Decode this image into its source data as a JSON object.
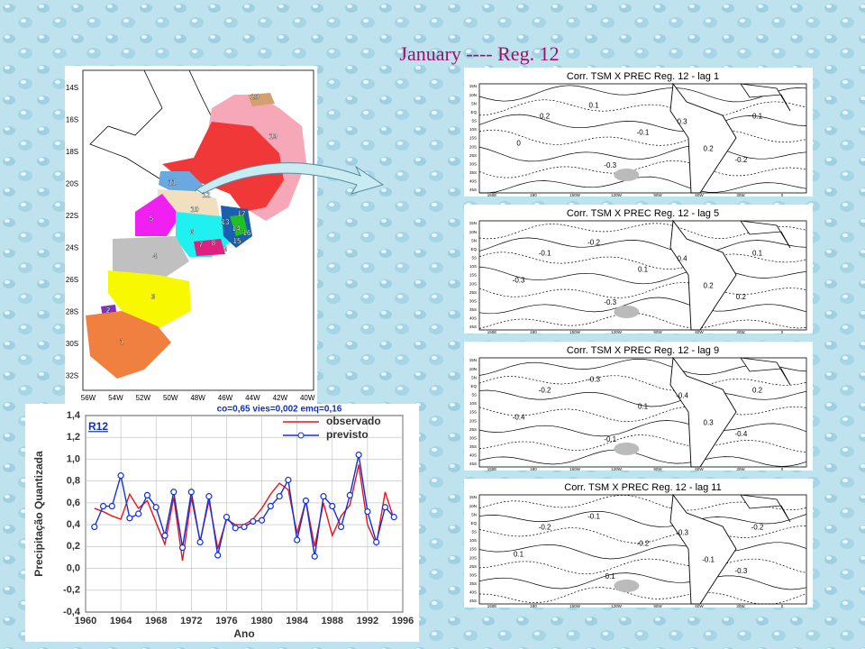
{
  "slide_title": "January ----  Reg. 12",
  "map": {
    "lat_labels": [
      "14S",
      "16S",
      "18S",
      "20S",
      "22S",
      "24S",
      "26S",
      "28S",
      "30S",
      "32S"
    ],
    "lon_labels": [
      "56W",
      "54W",
      "52W",
      "50W",
      "48W",
      "46W",
      "44W",
      "42W",
      "40W"
    ],
    "regions": [
      "1",
      "2",
      "3",
      "4",
      "5",
      "6",
      "7",
      "8",
      "9",
      "10",
      "11",
      "12",
      "13",
      "14",
      "15",
      "16",
      "17",
      "19",
      "20"
    ]
  },
  "chart_data": {
    "type": "line",
    "subtitle": "co=0,65 vies=0,002 emq=0,16",
    "annotation": "R12",
    "x_label": "Ano",
    "y_label": "Precipitação Quantizada",
    "x": [
      1961,
      1962,
      1963,
      1964,
      1965,
      1966,
      1967,
      1968,
      1969,
      1970,
      1971,
      1972,
      1973,
      1974,
      1975,
      1976,
      1977,
      1978,
      1979,
      1980,
      1981,
      1982,
      1983,
      1984,
      1985,
      1986,
      1987,
      1988,
      1989,
      1990,
      1991,
      1992,
      1993,
      1994,
      1995
    ],
    "series": [
      {
        "name": "observado",
        "color": "#e8141c",
        "marker": false,
        "values": [
          0.55,
          0.52,
          0.48,
          0.45,
          0.68,
          0.55,
          0.62,
          0.42,
          0.22,
          0.65,
          0.07,
          0.65,
          0.25,
          0.62,
          0.18,
          0.45,
          0.4,
          0.4,
          0.45,
          0.55,
          0.68,
          0.78,
          0.72,
          0.32,
          0.62,
          0.2,
          0.6,
          0.3,
          0.48,
          0.58,
          0.95,
          0.4,
          0.22,
          0.7,
          0.45
        ]
      },
      {
        "name": "previsto",
        "color": "#1030e0",
        "marker": true,
        "values": [
          0.38,
          0.57,
          0.57,
          0.85,
          0.46,
          0.5,
          0.67,
          0.56,
          0.3,
          0.7,
          0.19,
          0.7,
          0.24,
          0.66,
          0.12,
          0.47,
          0.37,
          0.38,
          0.43,
          0.44,
          0.57,
          0.66,
          0.81,
          0.26,
          0.62,
          0.11,
          0.66,
          0.57,
          0.38,
          0.67,
          1.04,
          0.52,
          0.24,
          0.56,
          0.47
        ]
      }
    ],
    "xlim": [
      1960,
      1996
    ],
    "xticks": [
      1960,
      1964,
      1968,
      1972,
      1976,
      1980,
      1984,
      1988,
      1992,
      1996
    ],
    "ylim": [
      -0.4,
      1.4
    ],
    "yticks": [
      {
        "value": -0.4,
        "label": "-0,4"
      },
      {
        "value": -0.2,
        "label": "-0,2"
      },
      {
        "value": 0,
        "label": "0,0"
      },
      {
        "value": 0.2,
        "label": "0,2"
      },
      {
        "value": 0.4,
        "label": "0,4"
      },
      {
        "value": 0.6,
        "label": "0,6"
      },
      {
        "value": 0.8,
        "label": "0,8"
      },
      {
        "value": 1.0,
        "label": "1,0"
      },
      {
        "value": 1.2,
        "label": "1,2"
      },
      {
        "value": 1.4,
        "label": "1,4"
      }
    ],
    "grid": true,
    "legend_position": "upper right"
  },
  "panel_axes": {
    "lat": [
      "15N",
      "10N",
      "5N",
      "EQ",
      "5S",
      "10S",
      "15S",
      "20S",
      "25S",
      "30S",
      "35S",
      "40S",
      "45S"
    ],
    "lon": [
      "150E",
      "180",
      "150W",
      "120W",
      "90W",
      "60W",
      "30W",
      "0"
    ]
  },
  "panels": [
    {
      "title": "Corr. TSM X PREC Reg. 12 - lag 1",
      "contour_labels": [
        "0.2",
        "0.1",
        "0",
        "-0.1",
        "0.2",
        "0.3",
        "-0.3",
        "0.1",
        "-0.2"
      ]
    },
    {
      "title": "Corr. TSM X PREC Reg. 12 - lag 5",
      "contour_labels": [
        "-0.1",
        "-0.2",
        "-0.3",
        "0.1",
        "0.2",
        "0.4",
        "-0.3",
        "0.1",
        "0.2"
      ]
    },
    {
      "title": "Corr. TSM X PREC Reg. 12 - lag 9",
      "contour_labels": [
        "-0.2",
        "-0.3",
        "-0.4",
        "0.1",
        "0.3",
        "-0.4",
        "-0.1",
        "0.2",
        "-0.4"
      ]
    },
    {
      "title": "Corr. TSM X PREC Reg. 12 - lag 11",
      "contour_labels": [
        "-0.2",
        "-0.1",
        "0.1",
        "-0.2",
        "-0.1",
        "-0.3",
        "0.1",
        "-0.2",
        "-0.3"
      ]
    }
  ]
}
